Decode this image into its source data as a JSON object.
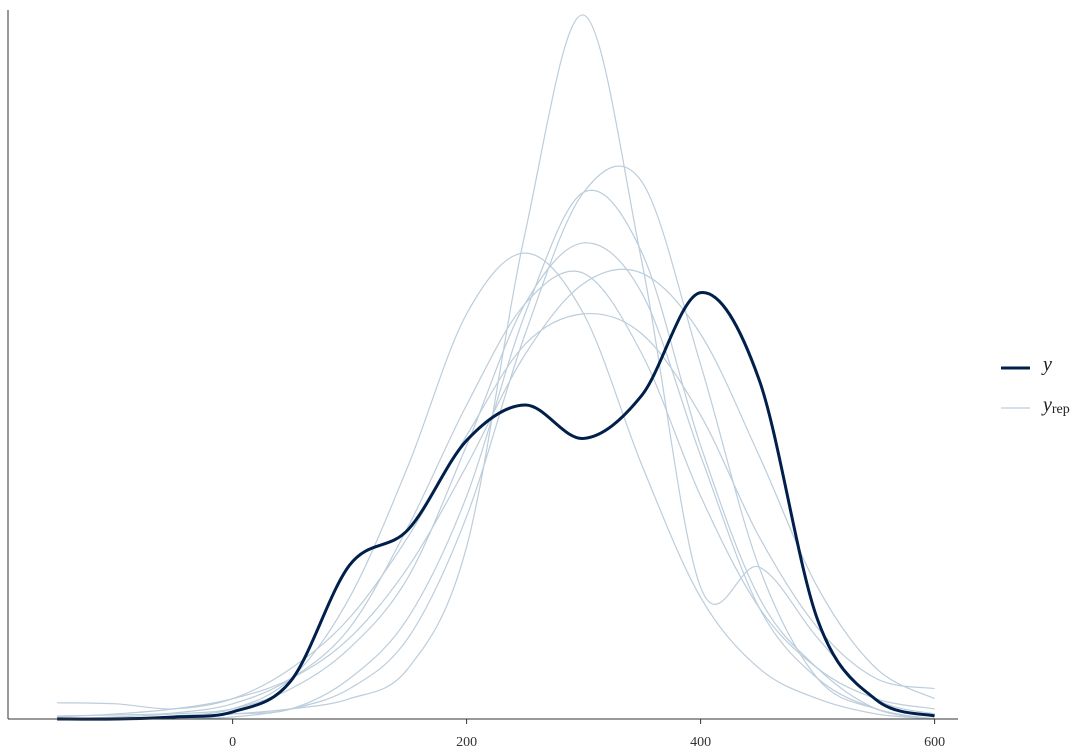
{
  "chart_data": {
    "type": "line",
    "x": [
      -150,
      -100,
      -50,
      0,
      50,
      100,
      150,
      200,
      250,
      300,
      350,
      400,
      450,
      500,
      550,
      600
    ],
    "series": [
      {
        "name": "y",
        "color": "#011f4b",
        "values": [
          0,
          0,
          2e-05,
          7e-05,
          0.00038,
          0.00152,
          0.00187,
          0.00275,
          0.0031,
          0.00277,
          0.0032,
          0.00421,
          0.00335,
          0.00098,
          0.00019,
          3e-05
        ]
      }
    ],
    "replicates": {
      "name": "y",
      "subscript": "rep",
      "color": "#bccddb",
      "values": [
        [
          0,
          1e-05,
          2e-05,
          5e-05,
          0.0001,
          0.0002,
          0.0005,
          0.0017,
          0.0048,
          0.00695,
          0.0045,
          0.0013,
          0.0015,
          0.0008,
          0.0002,
          5e-05
        ],
        [
          0,
          0,
          3e-05,
          0.0001,
          0.0004,
          0.0012,
          0.0025,
          0.004,
          0.0046,
          0.004,
          0.0025,
          0.0012,
          0.0005,
          0.0002,
          5e-05,
          0
        ],
        [
          0,
          0,
          0,
          2e-05,
          0.0001,
          0.0003,
          0.0008,
          0.002,
          0.0038,
          0.0052,
          0.0053,
          0.0035,
          0.0015,
          0.0004,
          0.0001,
          0
        ],
        [
          2e-05,
          5e-05,
          0.0001,
          0.0002,
          0.0004,
          0.0008,
          0.0015,
          0.0025,
          0.0036,
          0.0043,
          0.0044,
          0.0038,
          0.0026,
          0.0013,
          0.0005,
          0.0002
        ],
        [
          0.00016,
          0.00015,
          0.0001,
          0.0002,
          0.0005,
          0.001,
          0.0018,
          0.0028,
          0.0037,
          0.004,
          0.0038,
          0.003,
          0.0018,
          0.0009,
          0.0004,
          0.0003
        ],
        [
          0,
          0,
          2e-05,
          5e-05,
          0.0001,
          0.0004,
          0.001,
          0.0022,
          0.004,
          0.0052,
          0.0046,
          0.0027,
          0.0012,
          0.0005,
          0.0001,
          0
        ],
        [
          0,
          2e-05,
          5e-05,
          0.0001,
          0.0003,
          0.0007,
          0.0014,
          0.0027,
          0.0041,
          0.0047,
          0.0042,
          0.0026,
          0.0011,
          0.0004,
          0.0001,
          0
        ],
        [
          3e-05,
          4e-05,
          6e-05,
          0.00015,
          0.0004,
          0.0009,
          0.0019,
          0.0031,
          0.0041,
          0.0044,
          0.0036,
          0.0022,
          0.0011,
          0.0005,
          0.0002,
          0.0001
        ]
      ]
    },
    "xlim": [
      -192,
      620
    ],
    "xticks": [
      0,
      200,
      400,
      600
    ],
    "ylim": [
      0,
      0.007
    ],
    "grid": false
  }
}
